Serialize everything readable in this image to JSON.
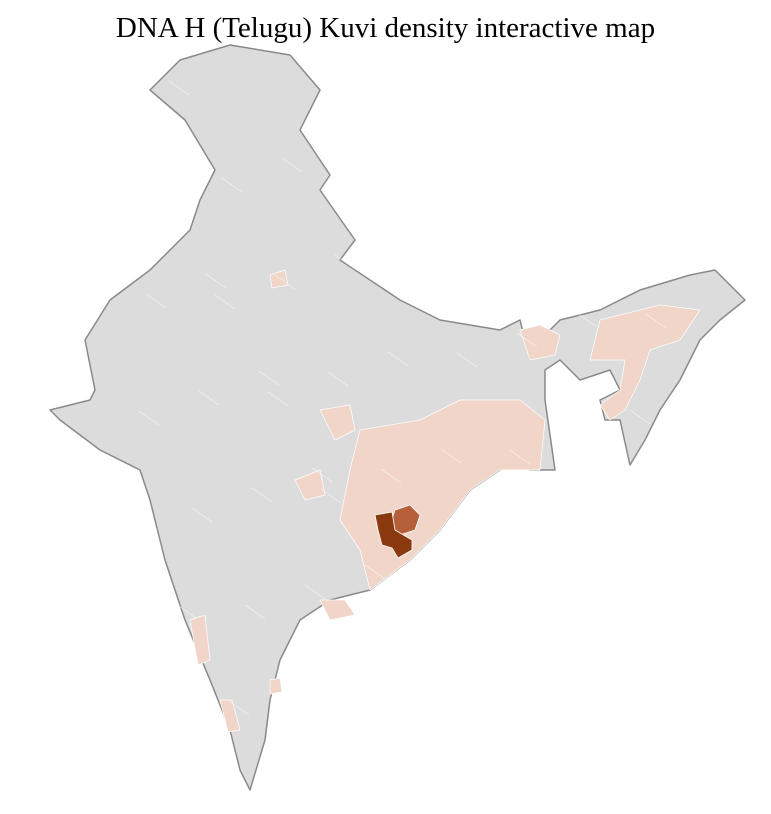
{
  "title": "DNA H (Telugu) Kuvi density interactive map",
  "map": {
    "region": "India districts",
    "colors": {
      "base": "#dcdcdc",
      "border_state": "#8a8a8a",
      "border_district": "#ffffff",
      "low": "#f0d5c8",
      "medium": "#b5603a",
      "high": "#8b3a0f"
    }
  }
}
